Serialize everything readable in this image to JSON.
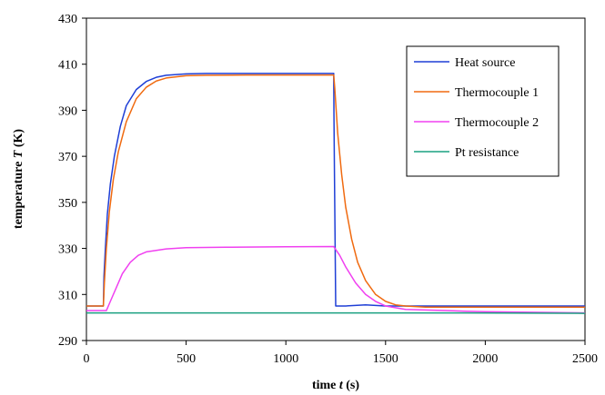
{
  "chart_data": {
    "type": "line",
    "xlim": [
      0,
      2500
    ],
    "ylim": [
      290,
      430
    ],
    "x_ticks": [
      0,
      500,
      1000,
      1500,
      2000,
      2500
    ],
    "y_ticks": [
      290,
      310,
      330,
      350,
      370,
      390,
      410,
      430
    ],
    "x_ticks_text": [
      "0",
      "500",
      "1000",
      "1500",
      "2000",
      "2500"
    ],
    "y_ticks_text": [
      "290",
      "310",
      "330",
      "350",
      "370",
      "390",
      "410",
      "430"
    ],
    "xlabel": {
      "pre": "time ",
      "var": "t",
      "post": "  (s)"
    },
    "ylabel": {
      "pre": "temperature ",
      "var": "T",
      "post": " (K)"
    },
    "grid": false,
    "legend_position": "top-right",
    "series": [
      {
        "name": "Heat source",
        "color": "#1f3fd6",
        "points": [
          [
            0,
            305
          ],
          [
            85,
            305
          ],
          [
            88,
            318
          ],
          [
            95,
            330
          ],
          [
            105,
            345
          ],
          [
            120,
            358
          ],
          [
            140,
            370
          ],
          [
            170,
            383
          ],
          [
            200,
            392
          ],
          [
            250,
            399
          ],
          [
            300,
            402.5
          ],
          [
            350,
            404.3
          ],
          [
            400,
            405.2
          ],
          [
            500,
            405.8
          ],
          [
            600,
            406
          ],
          [
            800,
            406
          ],
          [
            1000,
            406
          ],
          [
            1240,
            406
          ],
          [
            1241,
            390
          ],
          [
            1244,
            360
          ],
          [
            1250,
            305
          ],
          [
            1300,
            305
          ],
          [
            1400,
            305.5
          ],
          [
            1500,
            305
          ],
          [
            1600,
            305
          ],
          [
            1700,
            305
          ],
          [
            2000,
            305
          ],
          [
            2500,
            305
          ]
        ]
      },
      {
        "name": "Thermocouple 1",
        "color": "#f06a10",
        "points": [
          [
            0,
            305
          ],
          [
            85,
            305
          ],
          [
            90,
            315
          ],
          [
            100,
            330
          ],
          [
            115,
            346
          ],
          [
            135,
            360
          ],
          [
            160,
            372
          ],
          [
            200,
            385
          ],
          [
            250,
            395
          ],
          [
            300,
            400
          ],
          [
            350,
            402.7
          ],
          [
            400,
            404
          ],
          [
            500,
            405
          ],
          [
            600,
            405.2
          ],
          [
            800,
            405.3
          ],
          [
            1000,
            405.3
          ],
          [
            1240,
            405.3
          ],
          [
            1245,
            400
          ],
          [
            1260,
            380
          ],
          [
            1280,
            362
          ],
          [
            1300,
            348
          ],
          [
            1330,
            334
          ],
          [
            1360,
            324
          ],
          [
            1400,
            316
          ],
          [
            1450,
            310
          ],
          [
            1500,
            307
          ],
          [
            1550,
            305.5
          ],
          [
            1600,
            305
          ],
          [
            1700,
            304.5
          ],
          [
            2000,
            304.5
          ],
          [
            2500,
            304.5
          ]
        ]
      },
      {
        "name": "Thermocouple 2",
        "color": "#f040f0",
        "points": [
          [
            0,
            303
          ],
          [
            100,
            303
          ],
          [
            120,
            307
          ],
          [
            150,
            313
          ],
          [
            180,
            319
          ],
          [
            220,
            324
          ],
          [
            260,
            327
          ],
          [
            300,
            328.5
          ],
          [
            400,
            329.8
          ],
          [
            500,
            330.3
          ],
          [
            700,
            330.5
          ],
          [
            1000,
            330.7
          ],
          [
            1240,
            330.8
          ],
          [
            1270,
            327
          ],
          [
            1300,
            322
          ],
          [
            1350,
            315
          ],
          [
            1400,
            310
          ],
          [
            1450,
            307
          ],
          [
            1500,
            305
          ],
          [
            1600,
            303.5
          ],
          [
            1800,
            303
          ],
          [
            2000,
            302.5
          ],
          [
            2500,
            302
          ]
        ]
      },
      {
        "name": "Pt resistance",
        "color": "#1aa080",
        "points": [
          [
            0,
            302
          ],
          [
            1800,
            302
          ],
          [
            2500,
            301.8
          ]
        ]
      }
    ]
  }
}
